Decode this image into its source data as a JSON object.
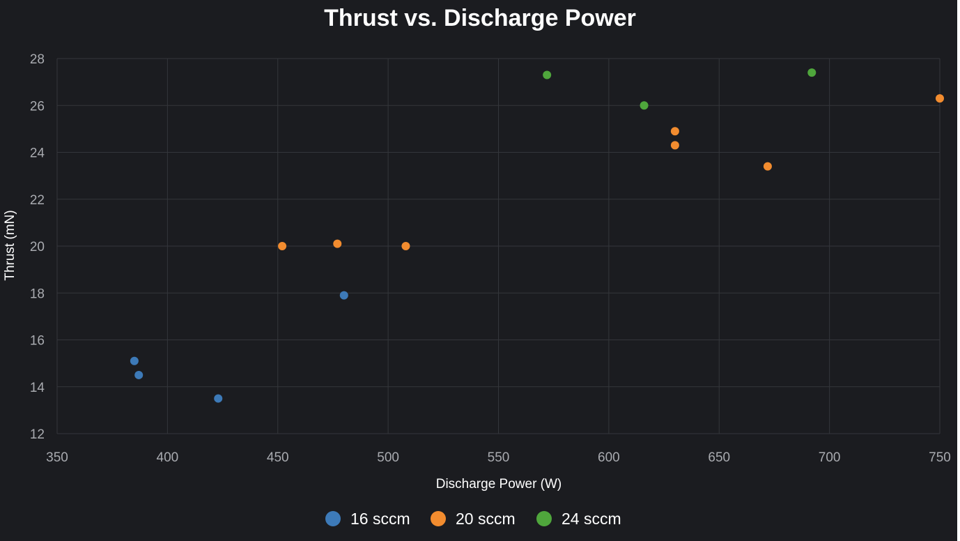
{
  "chart_data": {
    "type": "scatter",
    "title": "Thrust vs. Discharge Power",
    "xlabel": "Discharge Power (W)",
    "ylabel": "Thrust (mN)",
    "xlim": [
      350,
      750
    ],
    "ylim": [
      12,
      28
    ],
    "xticks": [
      350,
      400,
      450,
      500,
      550,
      600,
      650,
      700,
      750
    ],
    "yticks": [
      12,
      14,
      16,
      18,
      20,
      22,
      24,
      26,
      28
    ],
    "grid": true,
    "legend_position": "bottom-center",
    "series": [
      {
        "name": "16 sccm",
        "color": "#3d7ab8",
        "points": [
          {
            "x": 385,
            "y": 15.1
          },
          {
            "x": 387,
            "y": 14.5
          },
          {
            "x": 423,
            "y": 13.5
          },
          {
            "x": 480,
            "y": 17.9
          }
        ]
      },
      {
        "name": "20 sccm",
        "color": "#f28c2f",
        "points": [
          {
            "x": 452,
            "y": 20.0
          },
          {
            "x": 477,
            "y": 20.1
          },
          {
            "x": 508,
            "y": 20.0
          },
          {
            "x": 630,
            "y": 24.9
          },
          {
            "x": 630,
            "y": 24.3
          },
          {
            "x": 672,
            "y": 23.4
          },
          {
            "x": 750,
            "y": 26.3
          }
        ]
      },
      {
        "name": "24 sccm",
        "color": "#4fa63c",
        "points": [
          {
            "x": 572,
            "y": 27.3
          },
          {
            "x": 616,
            "y": 26.0
          },
          {
            "x": 692,
            "y": 27.4
          }
        ]
      }
    ]
  }
}
